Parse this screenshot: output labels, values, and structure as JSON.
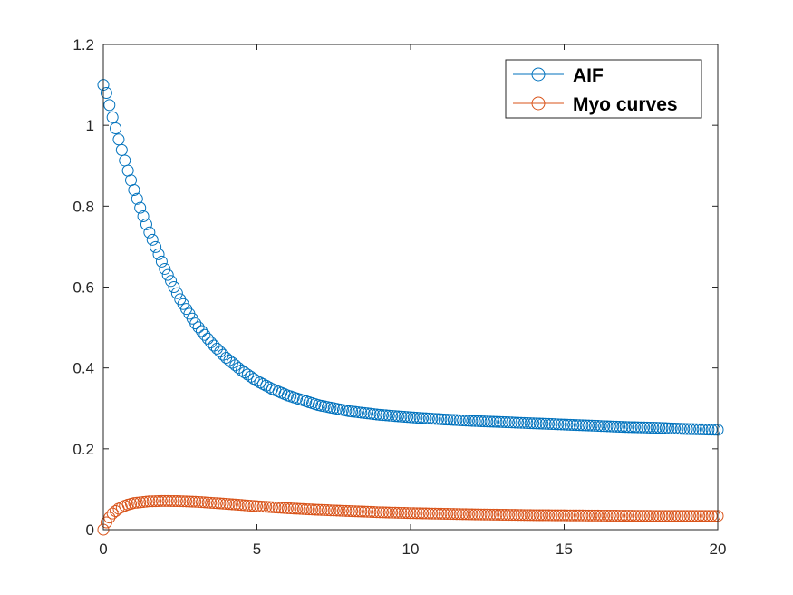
{
  "chart_data": {
    "type": "scatter",
    "title": "",
    "xlabel": "",
    "ylabel": "",
    "xlim": [
      0,
      20
    ],
    "ylim": [
      0,
      1.2
    ],
    "xticks": [
      0,
      5,
      10,
      15,
      20
    ],
    "yticks": [
      0,
      0.2,
      0.4,
      0.6,
      0.8,
      1,
      1.2
    ],
    "xtick_labels": [
      "0",
      "5",
      "10",
      "15",
      "20"
    ],
    "ytick_labels": [
      "0",
      "0.2",
      "0.4",
      "0.6",
      "0.8",
      "1",
      "1.2"
    ],
    "grid": false,
    "legend_position": "top-right",
    "marker": "open-circle",
    "series": [
      {
        "name": "AIF",
        "color": "#0072BD",
        "x": [
          0,
          0.1,
          0.2,
          0.3,
          0.5,
          0.75,
          1,
          1.25,
          1.5,
          2,
          2.5,
          3,
          3.5,
          4,
          4.5,
          5,
          5.5,
          6,
          7,
          8,
          9,
          10,
          11,
          12,
          13,
          14,
          15,
          16,
          17,
          18,
          19,
          20
        ],
        "y": [
          1.1,
          1.08,
          1.05,
          1.02,
          0.965,
          0.9,
          0.84,
          0.785,
          0.735,
          0.645,
          0.57,
          0.51,
          0.463,
          0.425,
          0.394,
          0.368,
          0.348,
          0.332,
          0.308,
          0.293,
          0.284,
          0.278,
          0.273,
          0.269,
          0.266,
          0.263,
          0.26,
          0.257,
          0.254,
          0.252,
          0.249,
          0.247
        ]
      },
      {
        "name": "Myo curves",
        "color": "#D95319",
        "x": [
          0,
          0.1,
          0.2,
          0.3,
          0.5,
          0.75,
          1,
          1.5,
          2,
          2.5,
          3,
          4,
          5,
          6,
          7,
          8,
          9,
          10,
          12,
          14,
          16,
          18,
          20
        ],
        "y": [
          0,
          0.018,
          0.03,
          0.04,
          0.052,
          0.061,
          0.066,
          0.07,
          0.071,
          0.0705,
          0.069,
          0.064,
          0.058,
          0.053,
          0.049,
          0.046,
          0.043,
          0.041,
          0.038,
          0.036,
          0.035,
          0.034,
          0.034
        ]
      }
    ]
  }
}
